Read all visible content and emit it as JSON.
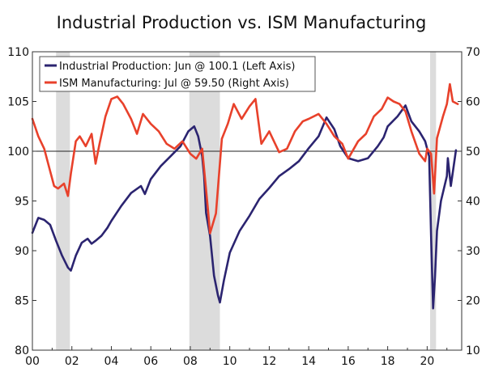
{
  "chart_data": {
    "type": "line",
    "title": "Industrial Production vs. ISM Manufacturing",
    "x_ticks": [
      "00",
      "02",
      "04",
      "06",
      "08",
      "10",
      "12",
      "14",
      "16",
      "18",
      "20"
    ],
    "x_range": [
      2000,
      2021.75
    ],
    "left_axis": {
      "range": [
        80,
        110
      ],
      "ticks": [
        "80",
        "85",
        "90",
        "95",
        "100",
        "105",
        "110"
      ]
    },
    "right_axis": {
      "range": [
        10,
        70
      ],
      "ticks": [
        "10",
        "20",
        "30",
        "40",
        "50",
        "60",
        "70"
      ]
    },
    "reference_line": {
      "axis": "right",
      "value": 50
    },
    "recessions": [
      [
        2001.2,
        2001.9
      ],
      [
        2007.95,
        2009.5
      ],
      [
        2020.15,
        2020.45
      ]
    ],
    "series": [
      {
        "name": "Industrial Production: Jun @ 100.1 (Left Axis)",
        "axis": "left",
        "color": "#2b2470",
        "x": [
          2000.0,
          2000.3,
          2000.6,
          2000.9,
          2001.2,
          2001.5,
          2001.8,
          2001.95,
          2002.2,
          2002.5,
          2002.8,
          2003.0,
          2003.2,
          2003.5,
          2003.8,
          2004.0,
          2004.5,
          2005.0,
          2005.5,
          2005.7,
          2006.0,
          2006.5,
          2007.0,
          2007.5,
          2007.9,
          2008.2,
          2008.4,
          2008.6,
          2008.7,
          2008.8,
          2009.0,
          2009.2,
          2009.4,
          2009.5,
          2009.7,
          2010.0,
          2010.5,
          2011.0,
          2011.5,
          2012.0,
          2012.5,
          2013.0,
          2013.5,
          2014.0,
          2014.5,
          2014.9,
          2015.3,
          2015.6,
          2016.0,
          2016.5,
          2017.0,
          2017.5,
          2017.8,
          2018.0,
          2018.5,
          2018.9,
          2019.2,
          2019.6,
          2019.9,
          2020.1,
          2020.2,
          2020.3,
          2020.4,
          2020.5,
          2020.7,
          2021.0,
          2021.05,
          2021.2,
          2021.46
        ],
        "values": [
          91.8,
          93.3,
          93.1,
          92.6,
          91.0,
          89.5,
          88.3,
          88.0,
          89.5,
          90.8,
          91.2,
          90.7,
          91.0,
          91.5,
          92.3,
          93.0,
          94.5,
          95.8,
          96.5,
          95.7,
          97.2,
          98.5,
          99.5,
          100.5,
          102.0,
          102.5,
          101.5,
          99.5,
          97.5,
          93.8,
          91.5,
          87.5,
          85.5,
          84.8,
          87.0,
          89.8,
          92.0,
          93.5,
          95.2,
          96.3,
          97.5,
          98.2,
          99.0,
          100.3,
          101.5,
          103.4,
          102.2,
          100.5,
          99.3,
          99.0,
          99.3,
          100.5,
          101.4,
          102.5,
          103.5,
          104.6,
          103.0,
          102.0,
          101.0,
          99.5,
          91.5,
          84.2,
          87.5,
          92.0,
          95.0,
          97.5,
          99.3,
          96.5,
          100.1
        ]
      },
      {
        "name": "ISM Manufacturing: Jul @ 59.50 (Right Axis)",
        "axis": "right",
        "color": "#e8412b",
        "x": [
          2000.0,
          2000.3,
          2000.6,
          2000.9,
          2001.1,
          2001.3,
          2001.6,
          2001.8,
          2001.95,
          2002.2,
          2002.4,
          2002.7,
          2003.0,
          2003.2,
          2003.4,
          2003.7,
          2004.0,
          2004.3,
          2004.6,
          2005.0,
          2005.3,
          2005.6,
          2006.0,
          2006.4,
          2006.8,
          2007.2,
          2007.6,
          2008.0,
          2008.3,
          2008.6,
          2008.9,
          2009.0,
          2009.3,
          2009.6,
          2009.9,
          2010.2,
          2010.6,
          2011.0,
          2011.3,
          2011.6,
          2012.0,
          2012.5,
          2012.9,
          2013.3,
          2013.7,
          2014.0,
          2014.5,
          2014.9,
          2015.3,
          2015.7,
          2016.0,
          2016.5,
          2016.9,
          2017.3,
          2017.7,
          2018.0,
          2018.3,
          2018.6,
          2018.9,
          2019.2,
          2019.6,
          2019.9,
          2020.0,
          2020.2,
          2020.35,
          2020.5,
          2020.8,
          2021.0,
          2021.15,
          2021.3,
          2021.55
        ],
        "values": [
          56.5,
          53.0,
          50.5,
          46.0,
          43.0,
          42.5,
          43.5,
          41.0,
          45.5,
          52.0,
          53.0,
          51.0,
          53.5,
          47.5,
          51.5,
          57.0,
          60.5,
          61.0,
          59.5,
          56.5,
          53.5,
          57.5,
          55.5,
          54.0,
          51.5,
          50.5,
          52.0,
          49.5,
          48.5,
          50.5,
          38.0,
          33.5,
          37.5,
          52.5,
          55.5,
          59.5,
          56.5,
          59.0,
          60.5,
          51.5,
          54.0,
          49.8,
          50.5,
          54.0,
          56.0,
          56.5,
          57.5,
          55.5,
          53.0,
          51.5,
          48.5,
          52.0,
          53.5,
          57.0,
          58.5,
          60.8,
          60.0,
          59.5,
          58.0,
          54.0,
          49.5,
          48.0,
          50.5,
          49.5,
          41.5,
          52.6,
          57.0,
          59.5,
          63.5,
          60.0,
          59.5
        ]
      }
    ],
    "legend_position": "top-left"
  }
}
